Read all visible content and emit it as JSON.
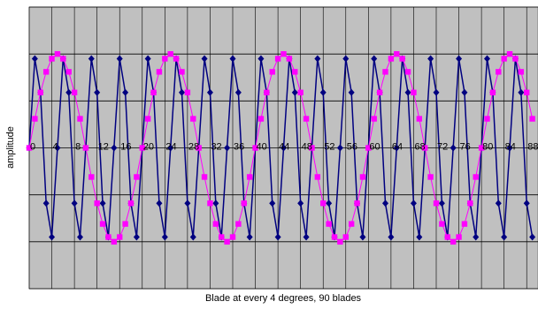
{
  "chart_data": {
    "type": "line",
    "x_label": "Blade at every 4 degrees, 90 blades",
    "y_label": "amplitude",
    "x": [
      0,
      1,
      2,
      3,
      4,
      5,
      6,
      7,
      8,
      9,
      10,
      11,
      12,
      13,
      14,
      15,
      16,
      17,
      18,
      19,
      20,
      21,
      22,
      23,
      24,
      25,
      26,
      27,
      28,
      29,
      30,
      31,
      32,
      33,
      34,
      35,
      36,
      37,
      38,
      39,
      40,
      41,
      42,
      43,
      44,
      45,
      46,
      47,
      48,
      49,
      50,
      51,
      52,
      53,
      54,
      55,
      56,
      57,
      58,
      59,
      60,
      61,
      62,
      63,
      64,
      65,
      66,
      67,
      68,
      69,
      70,
      71,
      72,
      73,
      74,
      75,
      76,
      77,
      78,
      79,
      80,
      81,
      82,
      83,
      84,
      85,
      86,
      87,
      88,
      89
    ],
    "series": [
      {
        "color": "#000080",
        "marker": "diamond",
        "values": [
          0,
          0.95,
          0.59,
          -0.59,
          -0.95,
          0,
          0.95,
          0.59,
          -0.59,
          -0.95,
          0,
          0.95,
          0.59,
          -0.59,
          -0.95,
          0,
          0.95,
          0.59,
          -0.59,
          -0.95,
          0,
          0.95,
          0.59,
          -0.59,
          -0.95,
          0,
          0.95,
          0.59,
          -0.59,
          -0.95,
          0,
          0.95,
          0.59,
          -0.59,
          -0.95,
          0,
          0.95,
          0.59,
          -0.59,
          -0.95,
          0,
          0.95,
          0.59,
          -0.59,
          -0.95,
          0,
          0.95,
          0.59,
          -0.59,
          -0.95,
          0,
          0.95,
          0.59,
          -0.59,
          -0.95,
          0,
          0.95,
          0.59,
          -0.59,
          -0.95,
          0,
          0.95,
          0.59,
          -0.59,
          -0.95,
          0,
          0.95,
          0.59,
          -0.59,
          -0.95,
          0,
          0.95,
          0.59,
          -0.59,
          -0.95,
          0,
          0.95,
          0.59,
          -0.59,
          -0.95,
          0,
          0.95,
          0.59,
          -0.59,
          -0.95,
          0,
          0.95,
          0.59,
          -0.59,
          -0.95
        ]
      },
      {
        "color": "#ff00ff",
        "marker": "square",
        "values": [
          0,
          0.31,
          0.59,
          0.81,
          0.95,
          1,
          0.95,
          0.81,
          0.59,
          0.31,
          0,
          -0.31,
          -0.59,
          -0.81,
          -0.95,
          -1,
          -0.95,
          -0.81,
          -0.59,
          -0.31,
          0,
          0.31,
          0.59,
          0.81,
          0.95,
          1,
          0.95,
          0.81,
          0.59,
          0.31,
          0,
          -0.31,
          -0.59,
          -0.81,
          -0.95,
          -1,
          -0.95,
          -0.81,
          -0.59,
          -0.31,
          0,
          0.31,
          0.59,
          0.81,
          0.95,
          1,
          0.95,
          0.81,
          0.59,
          0.31,
          0,
          -0.31,
          -0.59,
          -0.81,
          -0.95,
          -1,
          -0.95,
          -0.81,
          -0.59,
          -0.31,
          0,
          0.31,
          0.59,
          0.81,
          0.95,
          1,
          0.95,
          0.81,
          0.59,
          0.31,
          0,
          -0.31,
          -0.59,
          -0.81,
          -0.95,
          -1,
          -0.95,
          -0.81,
          -0.59,
          -0.31,
          0,
          0.31,
          0.59,
          0.81,
          0.95,
          1,
          0.95,
          0.81,
          0.59,
          0.31
        ]
      }
    ],
    "xlim": [
      0,
      90
    ],
    "xticks": [
      0,
      4,
      8,
      12,
      16,
      20,
      24,
      28,
      32,
      36,
      40,
      44,
      48,
      52,
      56,
      60,
      64,
      68,
      72,
      76,
      80,
      84,
      88
    ],
    "ylim": [
      -1.5,
      1.5
    ],
    "ygrid": [
      -1.5,
      -1,
      -0.5,
      0,
      0.5,
      1,
      1.5
    ],
    "grid": true,
    "background": "#c0c0c0"
  }
}
